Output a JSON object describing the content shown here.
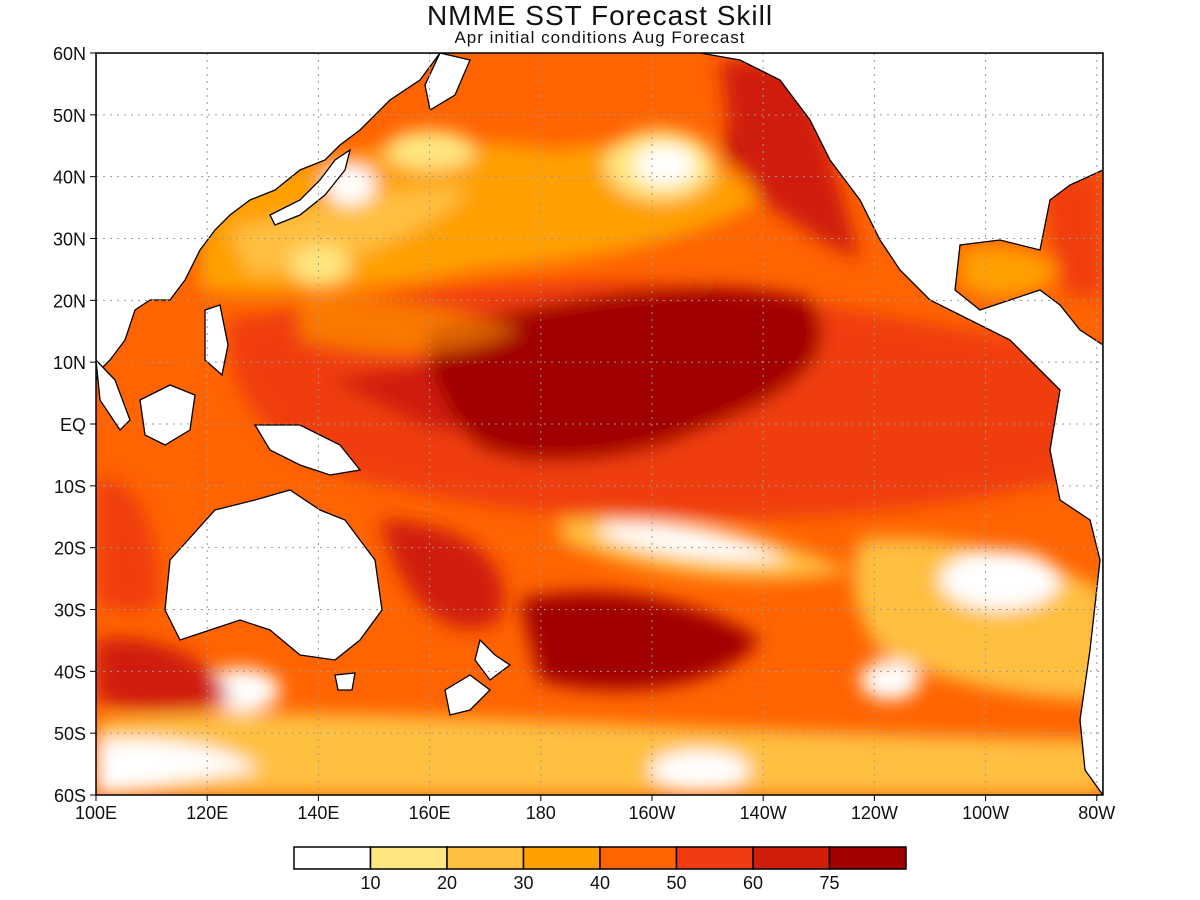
{
  "title": "NMME SST Forecast Skill",
  "subtitle": "Apr initial conditions  Aug Forecast",
  "axes": {
    "lat_labels": [
      "60N",
      "50N",
      "40N",
      "30N",
      "20N",
      "10N",
      "EQ",
      "10S",
      "20S",
      "30S",
      "40S",
      "50S",
      "60S"
    ],
    "lon_labels": [
      "100E",
      "120E",
      "140E",
      "160E",
      "180",
      "160W",
      "140W",
      "120W",
      "100W",
      "80W"
    ]
  },
  "colorbar": {
    "levels": [
      "10",
      "20",
      "30",
      "40",
      "50",
      "60",
      "75"
    ],
    "colors": [
      "#ffffff",
      "#ffe680",
      "#ffc040",
      "#ffa000",
      "#ff6400",
      "#f03c10",
      "#d01e0a",
      "#a00000"
    ]
  },
  "palette": {
    "land": "#ffffff",
    "coast": "#000000",
    "grid": "#9a9a9a"
  }
}
